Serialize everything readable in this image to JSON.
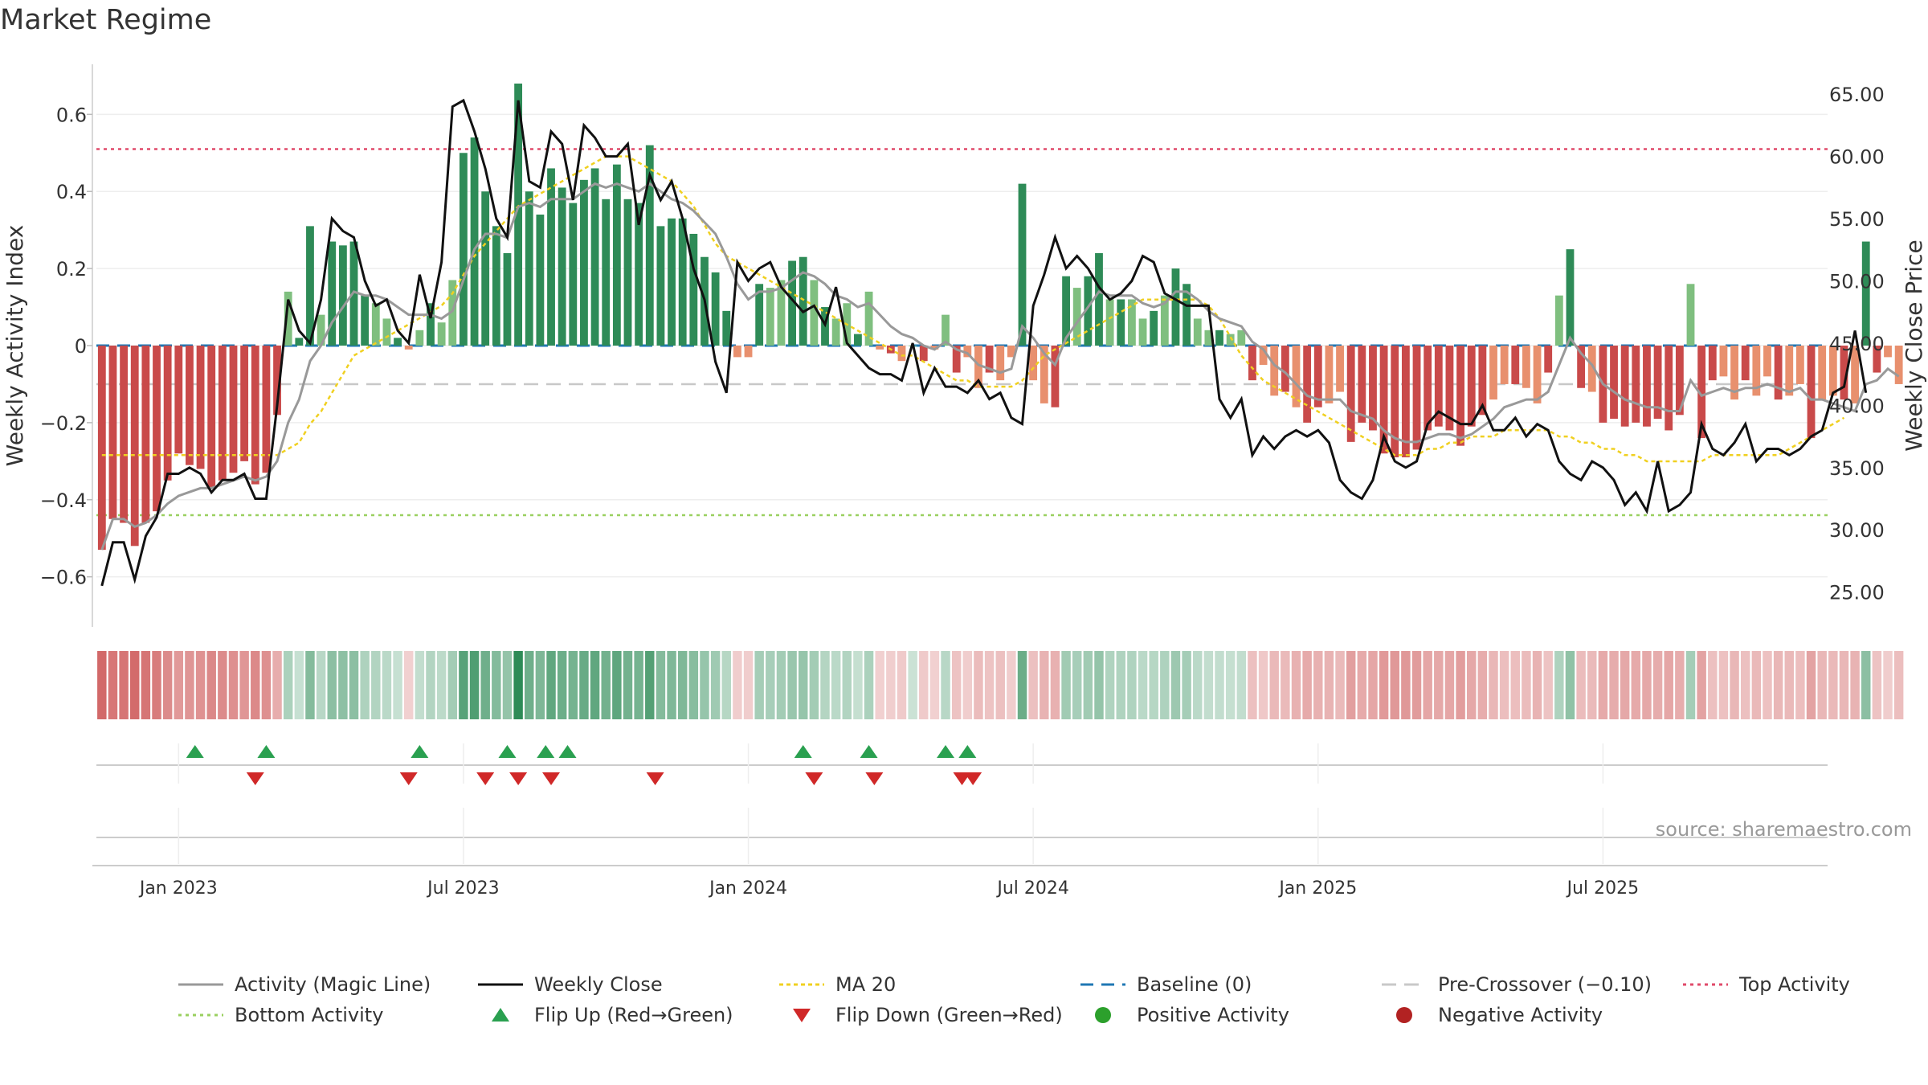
{
  "chart_data": {
    "type": "bar",
    "title": "Market Regime",
    "ylabel_left": "Weekly Activity Index",
    "ylabel_right": "Weekly Close Price",
    "source": "source: sharemaestro.com",
    "x_tick_labels": [
      "Jan 2023",
      "Jul 2023",
      "Jan 2024",
      "Jul 2024",
      "Jan 2025",
      "Jul 2025"
    ],
    "x_tick_weeks": [
      7.5,
      33.5,
      59.5,
      85.5,
      111.5,
      137.5
    ],
    "y_left": {
      "ticks": [
        0.6,
        0.4,
        0.2,
        0,
        -0.2,
        -0.4,
        -0.6
      ],
      "tick_labels": [
        "0.6",
        "0.4",
        "0.2",
        "0",
        "−0.2",
        "−0.4",
        "−0.6"
      ],
      "lim": [
        -0.73,
        0.73
      ]
    },
    "y_right": {
      "ticks": [
        65,
        60,
        55,
        50,
        45,
        40,
        35,
        30,
        25
      ],
      "tick_labels": [
        "65.00",
        "60.00",
        "55.00",
        "50.00",
        "45.00",
        "40.00",
        "35.00",
        "30.00",
        "25.00"
      ],
      "lim": [
        22.2,
        67.4
      ]
    },
    "reference_lines": {
      "baseline": 0,
      "pre_crossover": -0.1,
      "top_activity": 0.51,
      "bottom_activity": -0.44
    },
    "weeks": 158,
    "activity_index": [
      -0.53,
      -0.45,
      -0.46,
      -0.52,
      -0.46,
      -0.43,
      -0.35,
      -0.28,
      -0.31,
      -0.32,
      -0.37,
      -0.35,
      -0.33,
      -0.3,
      -0.36,
      -0.33,
      -0.18,
      0.14,
      0.02,
      0.31,
      0.08,
      0.27,
      0.26,
      0.27,
      0.13,
      0.11,
      0.07,
      0.02,
      -0.01,
      0.04,
      0.11,
      0.06,
      0.17,
      0.5,
      0.54,
      0.4,
      0.31,
      0.24,
      0.68,
      0.4,
      0.34,
      0.46,
      0.41,
      0.37,
      0.43,
      0.46,
      0.38,
      0.47,
      0.38,
      0.37,
      0.52,
      0.31,
      0.33,
      0.33,
      0.29,
      0.23,
      0.19,
      0.09,
      -0.03,
      -0.03,
      0.16,
      0.15,
      0.17,
      0.22,
      0.23,
      0.17,
      0.1,
      0.07,
      0.11,
      0.03,
      0.14,
      -0.01,
      -0.02,
      -0.04,
      0.0,
      -0.04,
      -0.01,
      0.08,
      -0.07,
      -0.03,
      -0.11,
      -0.07,
      -0.09,
      -0.03,
      0.42,
      -0.09,
      -0.15,
      -0.16,
      0.18,
      0.15,
      0.18,
      0.24,
      0.12,
      0.12,
      0.12,
      0.07,
      0.09,
      0.13,
      0.2,
      0.16,
      0.07,
      0.04,
      0.04,
      0.03,
      0.04,
      -0.09,
      -0.05,
      -0.13,
      -0.12,
      -0.16,
      -0.2,
      -0.16,
      -0.15,
      -0.12,
      -0.25,
      -0.2,
      -0.22,
      -0.28,
      -0.29,
      -0.29,
      -0.27,
      -0.22,
      -0.21,
      -0.22,
      -0.26,
      -0.21,
      -0.18,
      -0.14,
      -0.1,
      -0.1,
      -0.11,
      -0.15,
      -0.07,
      0.13,
      0.25,
      -0.11,
      -0.12,
      -0.2,
      -0.19,
      -0.21,
      -0.2,
      -0.21,
      -0.19,
      -0.22,
      -0.18,
      0.16,
      -0.24,
      -0.09,
      -0.08,
      -0.14,
      -0.09,
      -0.13,
      -0.08,
      -0.14,
      -0.13,
      -0.1,
      -0.24,
      -0.14,
      -0.13,
      -0.14,
      -0.15,
      0.27,
      -0.07,
      -0.03,
      -0.1
    ],
    "magic_line": [
      -0.53,
      -0.45,
      -0.45,
      -0.47,
      -0.46,
      -0.44,
      -0.41,
      -0.39,
      -0.38,
      -0.37,
      -0.37,
      -0.36,
      -0.35,
      -0.34,
      -0.35,
      -0.34,
      -0.3,
      -0.2,
      -0.14,
      -0.04,
      0.0,
      0.06,
      0.1,
      0.14,
      0.13,
      0.13,
      0.12,
      0.1,
      0.08,
      0.08,
      0.08,
      0.07,
      0.09,
      0.17,
      0.25,
      0.29,
      0.29,
      0.28,
      0.36,
      0.37,
      0.36,
      0.38,
      0.38,
      0.38,
      0.4,
      0.42,
      0.41,
      0.42,
      0.41,
      0.4,
      0.42,
      0.4,
      0.38,
      0.37,
      0.35,
      0.32,
      0.29,
      0.23,
      0.16,
      0.12,
      0.14,
      0.14,
      0.15,
      0.17,
      0.19,
      0.18,
      0.16,
      0.13,
      0.12,
      0.1,
      0.11,
      0.08,
      0.05,
      0.03,
      0.02,
      0.0,
      -0.01,
      0.01,
      -0.01,
      -0.02,
      -0.05,
      -0.06,
      -0.07,
      -0.06,
      0.05,
      0.02,
      -0.02,
      -0.05,
      0.02,
      0.06,
      0.1,
      0.14,
      0.13,
      0.13,
      0.13,
      0.11,
      0.1,
      0.11,
      0.14,
      0.14,
      0.12,
      0.09,
      0.07,
      0.06,
      0.05,
      0.01,
      -0.01,
      -0.05,
      -0.07,
      -0.1,
      -0.13,
      -0.14,
      -0.14,
      -0.14,
      -0.17,
      -0.18,
      -0.19,
      -0.22,
      -0.24,
      -0.25,
      -0.25,
      -0.24,
      -0.23,
      -0.23,
      -0.24,
      -0.23,
      -0.21,
      -0.19,
      -0.16,
      -0.15,
      -0.14,
      -0.14,
      -0.12,
      -0.05,
      0.02,
      -0.02,
      -0.05,
      -0.1,
      -0.12,
      -0.14,
      -0.15,
      -0.16,
      -0.16,
      -0.17,
      -0.17,
      -0.09,
      -0.13,
      -0.12,
      -0.11,
      -0.12,
      -0.11,
      -0.11,
      -0.1,
      -0.11,
      -0.12,
      -0.11,
      -0.14,
      -0.14,
      -0.15,
      -0.16,
      -0.17,
      -0.1,
      -0.09,
      -0.06,
      -0.08
    ],
    "weekly_close": [
      25.5,
      29.0,
      29.0,
      26.0,
      29.5,
      31.0,
      34.5,
      34.5,
      35.0,
      34.5,
      33.0,
      34.0,
      34.0,
      34.5,
      32.5,
      32.5,
      40.0,
      48.5,
      46.0,
      45.0,
      48.5,
      55.0,
      54.0,
      53.5,
      50.0,
      48.0,
      48.5,
      46.0,
      45.0,
      50.5,
      47.0,
      51.5,
      64.0,
      64.5,
      62.0,
      59.0,
      55.0,
      53.5,
      64.5,
      58.0,
      57.5,
      62.0,
      61.0,
      56.5,
      62.5,
      61.5,
      60.0,
      60.0,
      61.0,
      54.5,
      58.5,
      56.5,
      58.0,
      55.0,
      51.0,
      48.5,
      43.5,
      41.0,
      51.5,
      50.0,
      51.0,
      51.5,
      49.5,
      48.5,
      47.5,
      48.0,
      46.5,
      49.5,
      45.0,
      44.0,
      43.0,
      42.5,
      42.5,
      42.0,
      45.0,
      41.0,
      43.0,
      41.5,
      41.5,
      41.0,
      42.0,
      40.5,
      41.0,
      39.0,
      38.5,
      48.0,
      50.5,
      53.5,
      51.0,
      52.0,
      51.0,
      49.5,
      48.5,
      49.0,
      50.0,
      52.0,
      51.5,
      49.0,
      48.5,
      48.0,
      48.0,
      48.0,
      40.5,
      39.0,
      40.5,
      36.0,
      37.5,
      36.5,
      37.5,
      38.0,
      37.5,
      38.0,
      37.0,
      34.0,
      33.0,
      32.5,
      34.0,
      37.5,
      35.5,
      35.0,
      35.5,
      38.5,
      39.5,
      39.0,
      38.5,
      38.5,
      40.0,
      38.0,
      38.0,
      39.0,
      37.5,
      38.5,
      38.0,
      35.5,
      34.5,
      34.0,
      35.5,
      35.0,
      34.0,
      32.0,
      33.0,
      31.5,
      35.5,
      31.5,
      32.0,
      33.0,
      38.5,
      36.5,
      36.0,
      37.0,
      38.5,
      35.5,
      36.5,
      36.5,
      36.0,
      36.5,
      37.5,
      38.0,
      41.0,
      41.5,
      46.0,
      41.0
    ],
    "ma_20": [
      36.0,
      36.0,
      36.0,
      36.0,
      36.0,
      36.0,
      36.0,
      36.0,
      36.0,
      36.0,
      36.0,
      36.0,
      36.0,
      36.0,
      36.0,
      36.0,
      36.0,
      36.5,
      37.0,
      38.5,
      39.5,
      41.0,
      42.5,
      44.0,
      44.5,
      45.0,
      45.5,
      46.0,
      46.5,
      47.0,
      47.5,
      48.0,
      49.0,
      50.5,
      52.0,
      53.0,
      54.0,
      55.0,
      56.0,
      56.5,
      57.0,
      57.5,
      58.0,
      58.5,
      59.0,
      59.5,
      60.0,
      60.0,
      60.0,
      59.5,
      59.0,
      58.5,
      58.0,
      57.0,
      56.0,
      54.5,
      53.0,
      52.0,
      51.5,
      51.0,
      50.5,
      50.0,
      49.5,
      49.0,
      48.5,
      48.0,
      47.5,
      47.0,
      46.5,
      46.0,
      45.5,
      45.0,
      44.5,
      44.0,
      44.0,
      43.5,
      43.0,
      42.5,
      42.0,
      42.0,
      41.5,
      41.5,
      41.5,
      41.5,
      42.0,
      43.0,
      44.0,
      44.5,
      45.0,
      45.5,
      46.0,
      46.5,
      47.0,
      47.5,
      48.0,
      48.5,
      48.5,
      48.5,
      48.5,
      48.5,
      48.5,
      48.0,
      47.0,
      45.5,
      44.0,
      43.0,
      42.0,
      41.5,
      41.0,
      40.5,
      40.0,
      39.5,
      39.0,
      38.5,
      38.0,
      37.5,
      37.0,
      36.5,
      36.0,
      36.0,
      36.0,
      36.5,
      36.5,
      37.0,
      37.0,
      37.5,
      37.5,
      37.5,
      38.0,
      38.0,
      38.0,
      38.0,
      38.0,
      37.5,
      37.5,
      37.0,
      37.0,
      36.5,
      36.5,
      36.0,
      36.0,
      35.5,
      35.5,
      35.5,
      35.5,
      35.5,
      35.5,
      36.0,
      36.0,
      36.0,
      36.0,
      36.0,
      36.0,
      36.0,
      36.5,
      37.0,
      37.5,
      38.0,
      38.5,
      39.0
    ],
    "flip_up_weeks": [
      8.5,
      15,
      29,
      37,
      40.5,
      42.5,
      64,
      70,
      77,
      79
    ],
    "flip_down_weeks": [
      14,
      28,
      35,
      38,
      41,
      50.5,
      65,
      70.5,
      78.5,
      79.5
    ],
    "legend": [
      "Activity (Magic Line)",
      "Weekly Close",
      "MA 20",
      "Baseline (0)",
      "Pre-Crossover (−0.10)",
      "Top Activity",
      "Bottom Activity",
      "Flip Up (Red→Green)",
      "Flip Down (Green→Red)",
      "Positive Activity",
      "Negative Activity"
    ],
    "colors": {
      "pos_strong": "#2e8b57",
      "pos_light": "#7fbf7f",
      "neg_strong": "#c94a4a",
      "neg_light": "#e8906e",
      "magic_line": "#999999",
      "weekly_close": "#111111",
      "ma_20": "#f0d020",
      "baseline": "#1f77b4",
      "pre_crossover": "#c8c8c8",
      "top_activity": "#e04a6a",
      "bottom_activity": "#9ad060",
      "flip_up": "#2aa050",
      "flip_down": "#d02828",
      "positive_dot": "#2ca02c",
      "negative_dot": "#b22222"
    }
  }
}
